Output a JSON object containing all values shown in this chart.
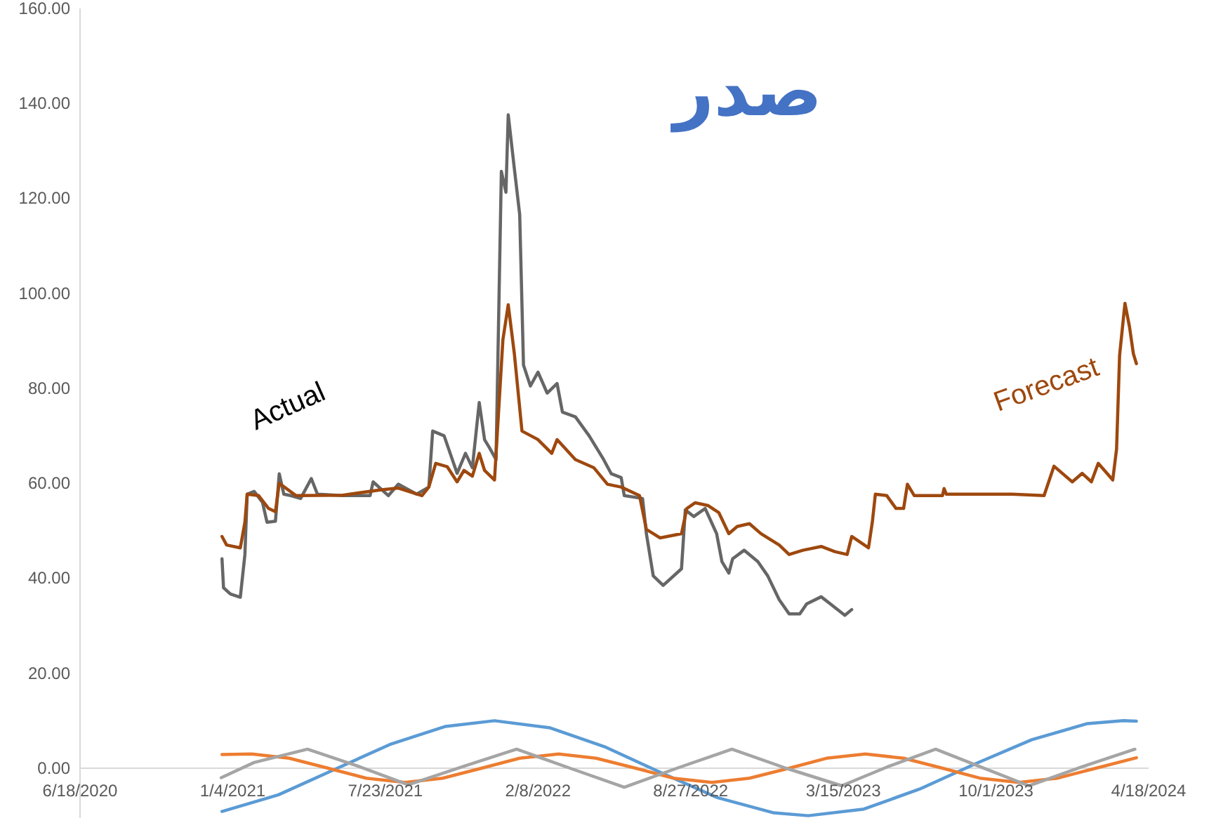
{
  "chart_data": {
    "type": "line",
    "title": "صدر",
    "xlim": [
      "2020-06-18",
      "2024-04-18"
    ],
    "xticks": [
      {
        "value": "2020-06-18",
        "label": "6/18/2020"
      },
      {
        "value": "2021-01-04",
        "label": "1/4/2021"
      },
      {
        "value": "2021-07-23",
        "label": "7/23/2021"
      },
      {
        "value": "2022-02-08",
        "label": "2/8/2022"
      },
      {
        "value": "2022-08-27",
        "label": "8/27/2022"
      },
      {
        "value": "2023-03-15",
        "label": "3/15/2023"
      },
      {
        "value": "2023-10-01",
        "label": "10/1/2023"
      },
      {
        "value": "2024-04-18",
        "label": "4/18/2024"
      }
    ],
    "ylim": [
      -10.5,
      160
    ],
    "yticks": [
      {
        "value": 0,
        "label": "0.00"
      },
      {
        "value": 20,
        "label": "20.00"
      },
      {
        "value": 40,
        "label": "40.00"
      },
      {
        "value": 60,
        "label": "60.00"
      },
      {
        "value": 80,
        "label": "80.00"
      },
      {
        "value": 100,
        "label": "100.00"
      },
      {
        "value": 120,
        "label": "120.00"
      },
      {
        "value": 140,
        "label": "140.00"
      },
      {
        "value": 160,
        "label": "160.00"
      }
    ],
    "grid": false,
    "legend": false,
    "marker": "none",
    "line_style": "solid",
    "series": [
      {
        "name": "Actual",
        "color": "#666666",
        "x": [
          "2020-12-21",
          "2020-12-23",
          "2021-01-01",
          "2021-01-14",
          "2021-01-20",
          "2021-01-23",
          "2021-02-01",
          "2021-02-12",
          "2021-02-18",
          "2021-03-01",
          "2021-03-06",
          "2021-03-12",
          "2021-03-21",
          "2021-04-03",
          "2021-04-17",
          "2021-04-25",
          "2021-05-28",
          "2021-07-03",
          "2021-07-07",
          "2021-07-27",
          "2021-08-09",
          "2021-09-02",
          "2021-09-18",
          "2021-09-23",
          "2021-10-08",
          "2021-10-25",
          "2021-11-05",
          "2021-11-14",
          "2021-11-23",
          "2021-11-30",
          "2021-12-06",
          "2021-12-15",
          "2021-12-22",
          "2021-12-28",
          "2021-12-31",
          "2022-01-08",
          "2022-01-15",
          "2022-01-20",
          "2022-01-29",
          "2022-02-08",
          "2022-02-20",
          "2022-03-05",
          "2022-03-12",
          "2022-03-29",
          "2022-04-16",
          "2022-05-05",
          "2022-05-15",
          "2022-05-28",
          "2022-06-01",
          "2022-06-25",
          "2022-06-30",
          "2022-07-09",
          "2022-07-22",
          "2022-08-15",
          "2022-08-20",
          "2022-08-31",
          "2022-09-15",
          "2022-09-30",
          "2022-10-07",
          "2022-10-16",
          "2022-10-21",
          "2022-11-05",
          "2022-11-23",
          "2022-12-06",
          "2022-12-21",
          "2023-01-03",
          "2023-01-17",
          "2023-01-26",
          "2023-02-14",
          "2023-02-26",
          "2023-03-17",
          "2023-03-26"
        ],
        "values": [
          44.1,
          38,
          36.7,
          36,
          45,
          57.7,
          58.3,
          56,
          51.8,
          52,
          62,
          57.7,
          57.4,
          56.8,
          61,
          57.7,
          57.4,
          57.4,
          60.3,
          57.4,
          59.8,
          57.7,
          59.2,
          71,
          70,
          62.1,
          66.3,
          63.3,
          77,
          69.2,
          67.6,
          65,
          125.7,
          121.3,
          137.6,
          126.3,
          116.6,
          84.9,
          80.5,
          83.4,
          79,
          81,
          75,
          74,
          70,
          65,
          62,
          61.2,
          57.4,
          56.8,
          49.4,
          40.5,
          38.5,
          42,
          54.4,
          53,
          54.7,
          49.4,
          43.5,
          41.1,
          44.1,
          45.9,
          43.5,
          40.5,
          35.5,
          32.5,
          32.5,
          34.6,
          36.1,
          34.6,
          32.2,
          33.4
        ]
      },
      {
        "name": "Forecast",
        "color": "#9e480e",
        "x": [
          "2020-12-21",
          "2020-12-27",
          "2021-01-14",
          "2021-01-20",
          "2021-01-23",
          "2021-02-07",
          "2021-02-20",
          "2021-03-01",
          "2021-03-06",
          "2021-03-28",
          "2021-05-28",
          "2021-07-16",
          "2021-08-09",
          "2021-09-09",
          "2021-09-18",
          "2021-09-27",
          "2021-10-12",
          "2021-10-25",
          "2021-11-03",
          "2021-11-14",
          "2021-11-23",
          "2021-11-30",
          "2021-12-13",
          "2021-12-24",
          "2021-12-31",
          "2022-01-08",
          "2022-01-18",
          "2022-02-08",
          "2022-02-26",
          "2022-03-05",
          "2022-03-29",
          "2022-04-22",
          "2022-05-10",
          "2022-05-28",
          "2022-06-21",
          "2022-06-30",
          "2022-07-18",
          "2022-08-15",
          "2022-08-22",
          "2022-09-02",
          "2022-09-19",
          "2022-10-03",
          "2022-10-16",
          "2022-10-27",
          "2022-11-12",
          "2022-11-27",
          "2022-12-21",
          "2023-01-03",
          "2023-01-21",
          "2023-02-14",
          "2023-03-04",
          "2023-03-20",
          "2023-03-26",
          "2023-04-17",
          "2023-04-22",
          "2023-04-26",
          "2023-05-11",
          "2023-05-23",
          "2023-06-02",
          "2023-06-07",
          "2023-06-16",
          "2023-07-23",
          "2023-07-25",
          "2023-07-28",
          "2023-10-22",
          "2023-12-03",
          "2023-12-16",
          "2024-01-09",
          "2024-01-22",
          "2024-02-03",
          "2024-02-12",
          "2024-03-02",
          "2024-03-07",
          "2024-03-11",
          "2024-03-18",
          "2024-03-24",
          "2024-03-29",
          "2024-04-02"
        ],
        "values": [
          48.8,
          47,
          46.4,
          51.8,
          57.7,
          57.4,
          54.7,
          54,
          60,
          57.4,
          57.5,
          58.6,
          59,
          57.4,
          59.2,
          64.2,
          63.5,
          60.3,
          62.7,
          61.5,
          66.3,
          62.7,
          60.7,
          90.2,
          97.6,
          87.3,
          71,
          69.2,
          66.3,
          69.2,
          65,
          63.3,
          59.8,
          59.2,
          57.4,
          50.3,
          48.5,
          49.4,
          54.7,
          55.9,
          55.3,
          53.8,
          49.4,
          50.9,
          51.5,
          49.4,
          47,
          45,
          45.9,
          46.7,
          45.6,
          45,
          48.8,
          46.4,
          51.8,
          57.7,
          57.4,
          54.7,
          54.7,
          59.8,
          57.4,
          57.4,
          58.9,
          57.7,
          57.7,
          57.4,
          63.6,
          60.3,
          62.1,
          60.3,
          64.2,
          60.7,
          67.2,
          87,
          97.9,
          92.9,
          87.3,
          85.2
        ]
      },
      {
        "color": "#5b9bd5",
        "x": [
          "2020-12-21",
          "2021-03-05",
          "2021-05-17",
          "2021-07-29",
          "2021-10-10",
          "2021-12-13",
          "2022-02-24",
          "2022-05-08",
          "2022-07-20",
          "2022-10-01",
          "2022-12-14",
          "2023-01-28",
          "2023-04-11",
          "2023-06-23",
          "2023-09-05",
          "2023-11-17",
          "2024-01-29",
          "2024-03-16",
          "2024-04-02"
        ],
        "values": [
          -9.1,
          -5.6,
          -0.3,
          5,
          8.8,
          10,
          8.5,
          4.4,
          -1,
          -6.2,
          -9.4,
          -10,
          -8.6,
          -4.4,
          1,
          6,
          9.4,
          10,
          9.9
        ]
      },
      {
        "color": "#ed7d31",
        "x": [
          "2020-12-21",
          "2021-01-29",
          "2021-03-19",
          "2021-05-09",
          "2021-06-28",
          "2021-08-18",
          "2021-10-06",
          "2021-11-26",
          "2022-01-15",
          "2022-03-07",
          "2022-04-25",
          "2022-06-16",
          "2022-08-04",
          "2022-09-24",
          "2022-11-12",
          "2023-01-03",
          "2023-02-21",
          "2023-04-13",
          "2023-06-02",
          "2023-07-23",
          "2023-09-10",
          "2023-10-31",
          "2023-12-20",
          "2024-02-09",
          "2024-04-02"
        ],
        "values": [
          2.9,
          3,
          2.1,
          0,
          -2.1,
          -3,
          -2.1,
          0,
          2.1,
          3,
          2.1,
          0,
          -2.1,
          -3,
          -2.1,
          0,
          2.1,
          3,
          2.1,
          0,
          -2.1,
          -3,
          -2.1,
          0,
          2.2
        ]
      },
      {
        "color": "#a5a5a5",
        "x": [
          "2020-12-20",
          "2021-02-01",
          "2021-04-12",
          "2021-06-16",
          "2021-08-22",
          "2021-11-01",
          "2022-01-11",
          "2022-03-22",
          "2022-06-01",
          "2022-08-09",
          "2022-10-20",
          "2022-12-30",
          "2023-03-13",
          "2023-05-12",
          "2023-07-14",
          "2023-09-12",
          "2023-11-13",
          "2024-01-22",
          "2024-03-31"
        ],
        "values": [
          -2,
          1.2,
          4,
          0.5,
          -3.5,
          0.3,
          4,
          0,
          -4,
          0,
          4,
          0,
          -3.7,
          0.3,
          4,
          0.2,
          -3.7,
          0.3,
          4
        ]
      }
    ]
  }
}
